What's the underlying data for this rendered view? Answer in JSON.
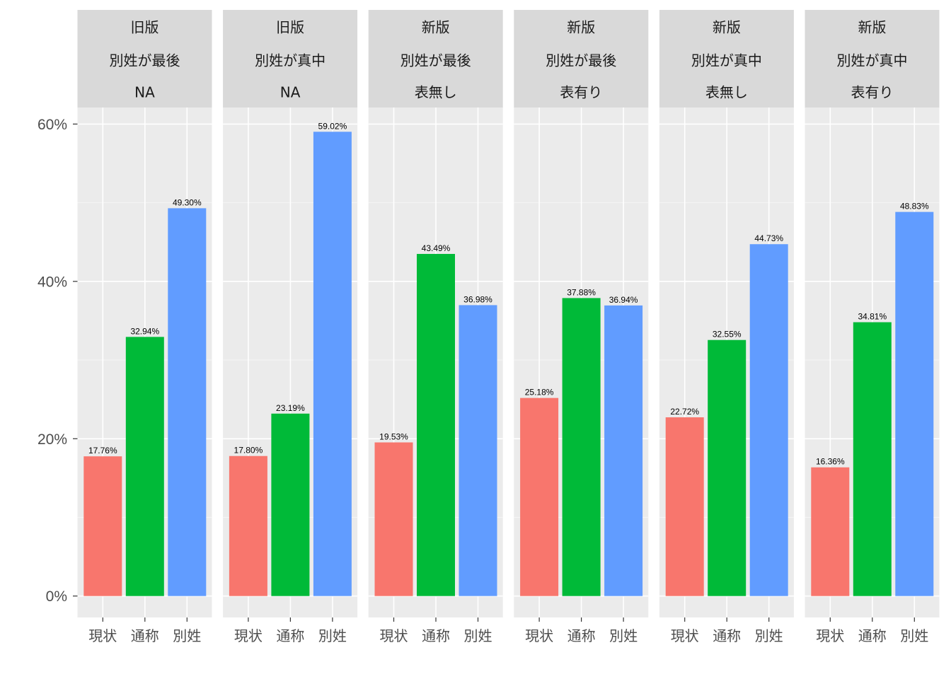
{
  "chart_data": {
    "type": "bar",
    "categories": [
      "現状",
      "通称",
      "別姓"
    ],
    "colors": [
      "#F8766D",
      "#00BA38",
      "#619CFF"
    ],
    "ylim": [
      0,
      0.6
    ],
    "yticks": [
      {
        "value": 0,
        "label": "0%"
      },
      {
        "value": 0.2,
        "label": "20%"
      },
      {
        "value": 0.4,
        "label": "40%"
      },
      {
        "value": 0.6,
        "label": "60%"
      }
    ],
    "grid": true,
    "legend": "none",
    "panels": [
      {
        "strip": [
          "旧版",
          "別姓が最後",
          "NA"
        ],
        "values": [
          0.1776,
          0.3294,
          0.493
        ],
        "labels": [
          "17.76%",
          "32.94%",
          "49.30%"
        ]
      },
      {
        "strip": [
          "旧版",
          "別姓が真中",
          "NA"
        ],
        "values": [
          0.178,
          0.2319,
          0.5902
        ],
        "labels": [
          "17.80%",
          "23.19%",
          "59.02%"
        ]
      },
      {
        "strip": [
          "新版",
          "別姓が最後",
          "表無し"
        ],
        "values": [
          0.1953,
          0.4349,
          0.3698
        ],
        "labels": [
          "19.53%",
          "43.49%",
          "36.98%"
        ]
      },
      {
        "strip": [
          "新版",
          "別姓が最後",
          "表有り"
        ],
        "values": [
          0.2518,
          0.3788,
          0.3694
        ],
        "labels": [
          "25.18%",
          "37.88%",
          "36.94%"
        ]
      },
      {
        "strip": [
          "新版",
          "別姓が真中",
          "表無し"
        ],
        "values": [
          0.2272,
          0.3255,
          0.4473
        ],
        "labels": [
          "22.72%",
          "32.55%",
          "44.73%"
        ]
      },
      {
        "strip": [
          "新版",
          "別姓が真中",
          "表有り"
        ],
        "values": [
          0.1636,
          0.3481,
          0.4883
        ],
        "labels": [
          "16.36%",
          "34.81%",
          "48.83%"
        ]
      }
    ]
  }
}
